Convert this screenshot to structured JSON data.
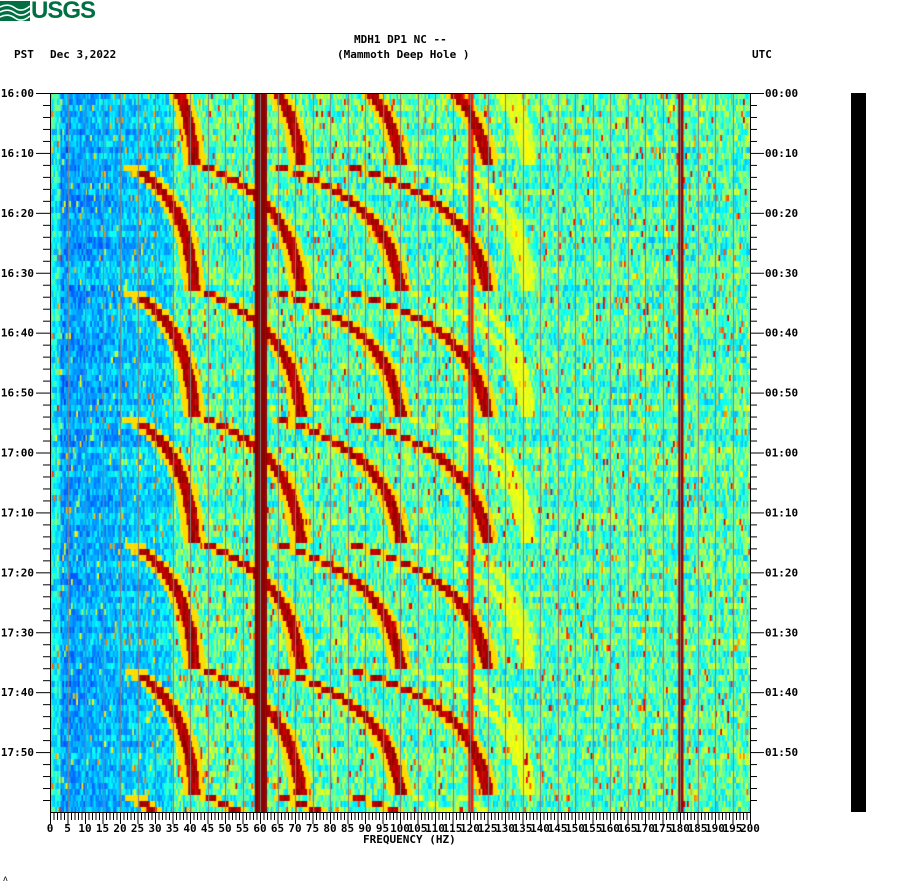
{
  "header": {
    "logo_text": "USGS",
    "title_line1": "MDH1 DP1 NC --",
    "title_line2": "(Mammoth Deep Hole )",
    "left_timezone": "PST",
    "date": "Dec 3,2022",
    "right_timezone": "UTC"
  },
  "footer_mark": "ᴧ",
  "colors": {
    "logo_green": "#006f41",
    "colormap": [
      "#0000a0",
      "#0050ff",
      "#00a0ff",
      "#00ffff",
      "#80ff80",
      "#ffff00",
      "#ff8000",
      "#ff0000",
      "#8b0000"
    ],
    "gridline": "#808080"
  },
  "chart_data": {
    "type": "heatmap",
    "title": "MDH1 DP1 NC -- (Mammoth Deep Hole )",
    "subtitle": "Dec 3,2022",
    "xlabel": "FREQUENCY (HZ)",
    "ylabel_left": "PST",
    "ylabel_right": "UTC",
    "xlim": [
      0,
      200
    ],
    "x_ticks": [
      0,
      5,
      10,
      15,
      20,
      25,
      30,
      35,
      40,
      45,
      50,
      55,
      60,
      65,
      70,
      75,
      80,
      85,
      90,
      95,
      100,
      105,
      110,
      115,
      120,
      125,
      130,
      135,
      140,
      145,
      150,
      155,
      160,
      165,
      170,
      175,
      180,
      185,
      190,
      195,
      200
    ],
    "x_minor_tick_step": 1,
    "y_ticks_left": [
      "16:00",
      "16:10",
      "16:20",
      "16:30",
      "16:40",
      "16:50",
      "17:00",
      "17:10",
      "17:20",
      "17:30",
      "17:40",
      "17:50"
    ],
    "y_ticks_right": [
      "00:00",
      "00:10",
      "00:20",
      "00:30",
      "00:40",
      "00:50",
      "01:00",
      "01:10",
      "01:20",
      "01:30",
      "01:40",
      "01:50"
    ],
    "y_minor_tick_step_minutes": 2,
    "time_span_minutes": 120,
    "grid": {
      "vertical_every_hz": 5
    },
    "persistent_lines_hz": [
      60,
      120,
      180
    ],
    "chirp_start_minutes": [
      -9,
      12,
      33,
      54,
      75,
      96,
      117
    ],
    "chirp_description": "Repeating frequency-gliding harmonic arcs (~21 min period) rising from ~20-45 Hz up to ~120 Hz",
    "noise_floor_profile": "Low (blue) below ~35 Hz, mid (cyan/green) 35-200 Hz",
    "scalebar": "black amplitude bar at right of plot"
  }
}
